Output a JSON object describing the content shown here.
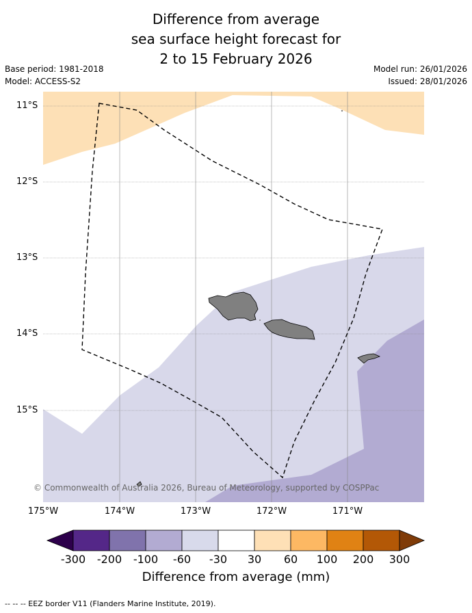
{
  "title": {
    "line1": "Difference from average",
    "line2": "sea surface height forecast for",
    "line3": "2 to 15 February 2026"
  },
  "meta": {
    "base_period": "Base period: 1981-2018",
    "model": "Model: ACCESS-S2",
    "model_run": "Model run: 26/01/2026",
    "issued": "Issued: 28/01/2026"
  },
  "map": {
    "lat_labels": [
      "11°S",
      "12°S",
      "13°S",
      "14°S",
      "15°S"
    ],
    "lon_labels": [
      "175°W",
      "174°W",
      "173°W",
      "172°W",
      "171°W"
    ],
    "credit": "© Commonwealth of Australia 2026, Bureau of Meteorology, supported by COSPPac",
    "colors": {
      "land": "#808080",
      "band_30_60": "#fde0b6",
      "band_neg30_0": "#ffffff",
      "band_neg60_neg30": "#d8d8ea",
      "band_neg100_neg60": "#b2abd2"
    }
  },
  "colorbar": {
    "ticks": [
      "-300",
      "-200",
      "-100",
      "-60",
      "-30",
      "30",
      "60",
      "100",
      "200",
      "300"
    ],
    "colors": [
      "#2d004b",
      "#542788",
      "#8073ac",
      "#b2abd2",
      "#d8daeb",
      "#ffffff",
      "#fee0b6",
      "#fdb863",
      "#e08214",
      "#b35806",
      "#7f3b08"
    ],
    "label": "Difference from average (mm)"
  },
  "footnote": "--  --  -- EEZ border V11 (Flanders Marine Institute, 2019)."
}
